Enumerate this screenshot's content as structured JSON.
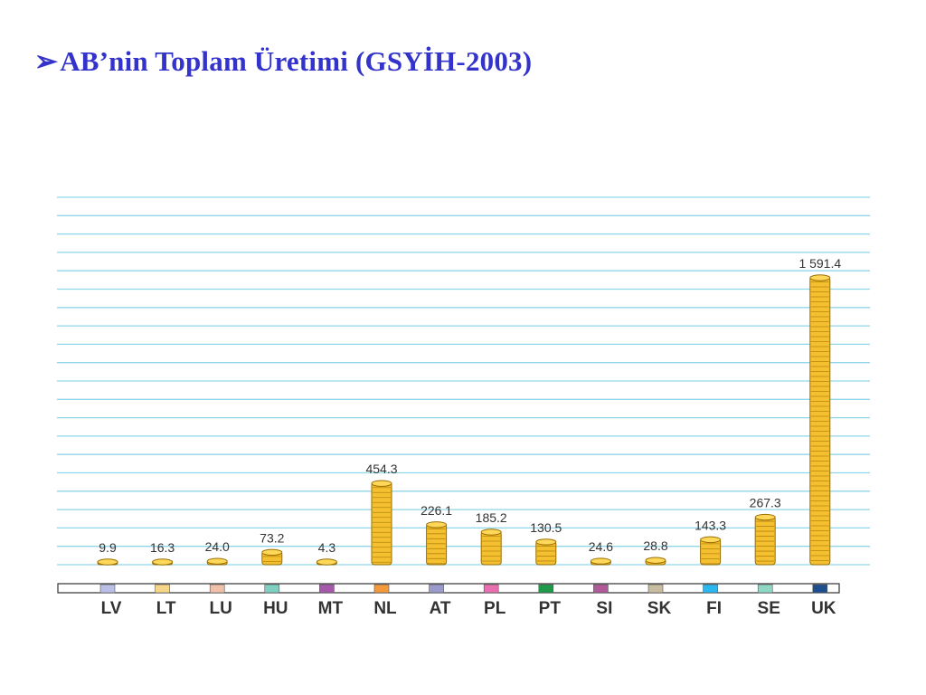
{
  "slide": {
    "title_arrow": "➢",
    "title": "AB’nin Toplam Üretimi (GSYİH-2003)"
  },
  "chart_data": {
    "type": "bar",
    "title": "",
    "xlabel": "",
    "ylabel": "",
    "ylim": [
      0,
      1600
    ],
    "grid": true,
    "legend": "none",
    "categories": [
      "LV",
      "LT",
      "LU",
      "HU",
      "MT",
      "NL",
      "AT",
      "PL",
      "PT",
      "SI",
      "SK",
      "FI",
      "SE",
      "UK"
    ],
    "values": [
      9.9,
      16.3,
      24.0,
      73.2,
      4.3,
      454.3,
      226.1,
      185.2,
      130.5,
      24.6,
      28.8,
      143.3,
      267.3,
      1591.4
    ],
    "value_labels": [
      "9.9",
      "16.3",
      "24.0",
      "73.2",
      "4.3",
      "454.3",
      "226.1",
      "185.2",
      "130.5",
      "24.6",
      "28.8",
      "143.3",
      "267.3",
      "1 591.4"
    ],
    "category_colors": [
      "#b9bfe6",
      "#f7d68a",
      "#f0c0a8",
      "#7fd0c0",
      "#a45aa8",
      "#f39a3a",
      "#9a9acc",
      "#e870b0",
      "#1f9a4a",
      "#b05a9a",
      "#c8bca0",
      "#2ab8ee",
      "#8fd8c8",
      "#1e4f8f"
    ],
    "colors": {
      "coin_fill": "#f5c030",
      "coin_edge": "#9a6e00",
      "coin_top": "#ffd85a",
      "grid": "#8fd6ea"
    }
  }
}
